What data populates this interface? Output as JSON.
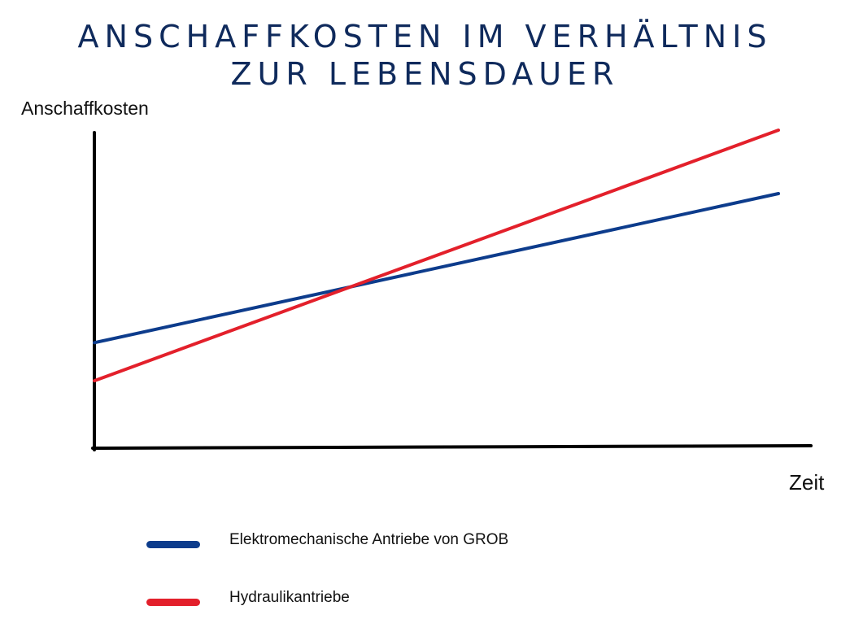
{
  "chart_data": {
    "type": "line",
    "title": [
      "ANSCHAFFKOSTEN IM VERHÄLTNIS",
      "ZUR LEBENSDAUER"
    ],
    "xlabel": "Zeit",
    "ylabel": "Anschaffkosten",
    "x": [
      0,
      100
    ],
    "xlim": [
      0,
      105
    ],
    "ylim": [
      0,
      100
    ],
    "grid": false,
    "legend_position": "bottom-left",
    "series": [
      {
        "name": "Elektromechanische Antriebe von GROB",
        "values": [
          33,
          80
        ],
        "color": "#0d3c8c"
      },
      {
        "name": "Hydraulikantriebe",
        "values": [
          21,
          100
        ],
        "color": "#e3202b"
      }
    ]
  }
}
